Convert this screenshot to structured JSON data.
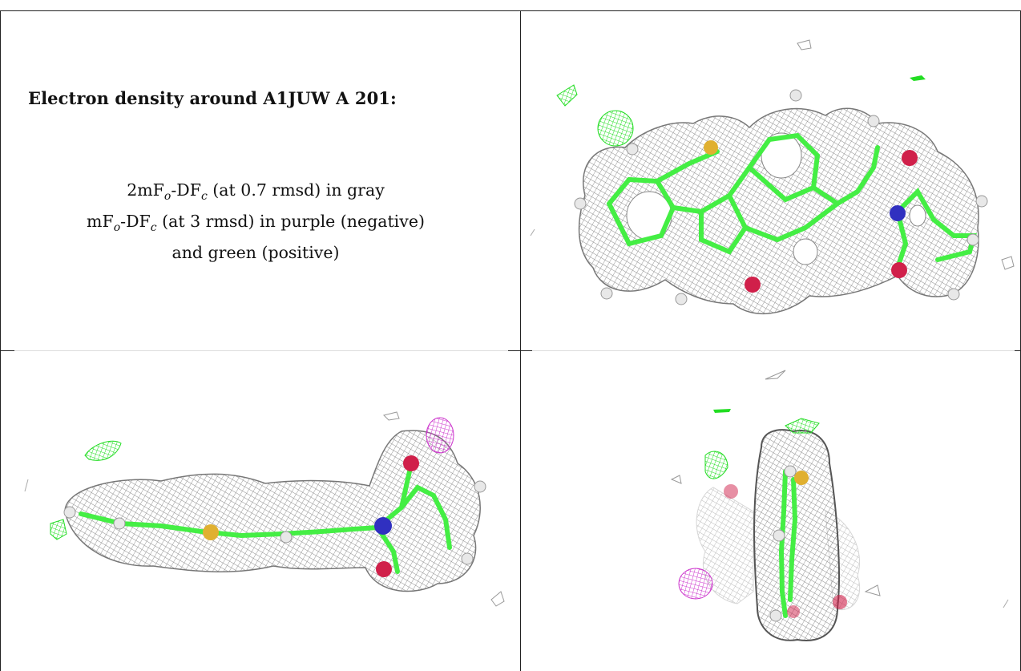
{
  "title": "Electron density around A1JUW A 201:",
  "legend": {
    "line1": {
      "a": "2mF",
      "a_sub": "o",
      "b": "-DF",
      "b_sub": "c",
      "rest": " (at 0.7 rmsd) in gray"
    },
    "line2": {
      "a": "mF",
      "a_sub": "o",
      "b": "-DF",
      "b_sub": "c",
      "rest": " (at 3 rmsd) in purple (negative)"
    },
    "line3": "and green (positive)"
  },
  "colors": {
    "mesh_gray": "#9a9a9a",
    "positive_green": "#22dd22",
    "negative_purple": "#cc33cc",
    "carbon": "#44ee44",
    "sulfur": "#e0b030",
    "nitrogen": "#3030c0",
    "oxygen": "#d0204a",
    "hydrogen": "#e8e8e8"
  },
  "views": [
    {
      "name": "top-right-view",
      "icon": "ligand-density-top-view"
    },
    {
      "name": "bottom-left-view",
      "icon": "ligand-density-side-view"
    },
    {
      "name": "bottom-right-view",
      "icon": "ligand-density-end-view"
    }
  ]
}
